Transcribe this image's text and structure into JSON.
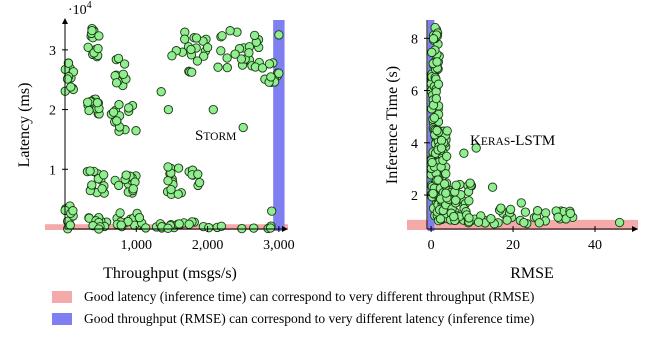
{
  "colors": {
    "point_fill": "#90EE90",
    "point_stroke": "#1a3a12",
    "good_latency_band": "#f4aaaa",
    "good_throughput_band": "#7f7ff2"
  },
  "chart_data": [
    {
      "type": "scatter",
      "panel": "left",
      "title": "Storm",
      "xlabel": "Throughput (msgs/s)",
      "ylabel": "Latency (ms)",
      "y_multiplier_label": "·10^4",
      "xlim": [
        0,
        3100
      ],
      "ylim": [
        0,
        35000
      ],
      "xticks": [
        1000,
        2000,
        3000
      ],
      "xtick_labels": [
        "1,000",
        "2,000",
        "3,000"
      ],
      "yticks": [
        10000,
        20000,
        30000
      ],
      "ytick_labels": [
        "1",
        "2",
        "3"
      ],
      "grid": false,
      "bands": [
        {
          "axis": "y",
          "from": 0,
          "to": 800,
          "color": "#f4aaaa"
        },
        {
          "axis": "x",
          "from": 2920,
          "to": 3080,
          "color": "#7f7ff2"
        }
      ],
      "clusters": [
        {
          "x": [
            0,
            120
          ],
          "y": [
            23000,
            28000
          ],
          "n": 14
        },
        {
          "x": [
            0,
            120
          ],
          "y": [
            0,
            4000
          ],
          "n": 10
        },
        {
          "x": [
            300,
            500
          ],
          "y": [
            28000,
            34000
          ],
          "n": 16
        },
        {
          "x": [
            300,
            500
          ],
          "y": [
            19000,
            22000
          ],
          "n": 14
        },
        {
          "x": [
            250,
            550
          ],
          "y": [
            6000,
            10000
          ],
          "n": 14
        },
        {
          "x": [
            300,
            600
          ],
          "y": [
            0,
            3000
          ],
          "n": 14
        },
        {
          "x": [
            700,
            900
          ],
          "y": [
            24000,
            29000
          ],
          "n": 10
        },
        {
          "x": [
            600,
            1000
          ],
          "y": [
            16000,
            21000
          ],
          "n": 16
        },
        {
          "x": [
            650,
            1000
          ],
          "y": [
            6000,
            10000
          ],
          "n": 14
        },
        {
          "x": [
            650,
            1100
          ],
          "y": [
            200,
            3000
          ],
          "n": 16
        },
        {
          "x": [
            1400,
            1650
          ],
          "y": [
            5500,
            11000
          ],
          "n": 14
        },
        {
          "x": [
            1700,
            1900
          ],
          "y": [
            7000,
            10500
          ],
          "n": 7
        },
        {
          "x": [
            1550,
            2000
          ],
          "y": [
            26000,
            33000
          ],
          "n": 18
        },
        {
          "x": [
            2000,
            2750
          ],
          "y": [
            27000,
            34500
          ],
          "n": 26
        },
        {
          "x": [
            2700,
            3000
          ],
          "y": [
            24500,
            28000
          ],
          "n": 12
        },
        {
          "x": [
            1100,
            2000
          ],
          "y": [
            100,
            1200
          ],
          "n": 16
        },
        {
          "x": [
            1300,
            2900
          ],
          "y": [
            0,
            600
          ],
          "n": 10
        }
      ],
      "extra_points": [
        [
          1350,
          23000
        ],
        [
          1500,
          29000
        ],
        [
          2080,
          20000
        ],
        [
          1450,
          20000
        ],
        [
          2500,
          17000
        ],
        [
          2900,
          3000
        ],
        [
          3000,
          32500
        ],
        [
          2580,
          29500
        ]
      ]
    },
    {
      "type": "scatter",
      "panel": "right",
      "title": "Keras-LSTM",
      "xlabel": "RMSE",
      "ylabel": "Inference Time (s)",
      "xlim": [
        -1,
        50
      ],
      "ylim": [
        0.7,
        8.7
      ],
      "xticks": [
        0,
        20,
        40
      ],
      "yticks": [
        2,
        4,
        6,
        8
      ],
      "grid": false,
      "bands": [
        {
          "axis": "y",
          "from": 0.7,
          "to": 1.05,
          "color": "#f4aaaa"
        },
        {
          "axis": "x",
          "from": -0.8,
          "to": 0.8,
          "color": "#7f7ff2"
        }
      ],
      "clusters": [
        {
          "x": [
            0,
            2
          ],
          "y": [
            1.0,
            8.5
          ],
          "n": 90
        },
        {
          "x": [
            0,
            4
          ],
          "y": [
            1.0,
            4.5
          ],
          "n": 70
        },
        {
          "x": [
            2,
            10
          ],
          "y": [
            1.0,
            2.5
          ],
          "n": 50
        },
        {
          "x": [
            8,
            35
          ],
          "y": [
            0.9,
            1.5
          ],
          "n": 40
        }
      ],
      "extra_points": [
        [
          8,
          3.6
        ],
        [
          11,
          3.8
        ],
        [
          15,
          2.3
        ],
        [
          17,
          1.5
        ],
        [
          22,
          1.7
        ],
        [
          46,
          0.95
        ],
        [
          34,
          1.3
        ],
        [
          31,
          1.15
        ],
        [
          26,
          1.4
        ],
        [
          6,
          1.8
        ]
      ]
    }
  ],
  "legend": [
    {
      "label": "Good latency (inference time) can correspond to very different throughput (RMSE)",
      "color": "#f4aaaa"
    },
    {
      "label": "Good throughput (RMSE) can correspond to very different latency (inference time)",
      "color": "#7f7ff2"
    }
  ]
}
